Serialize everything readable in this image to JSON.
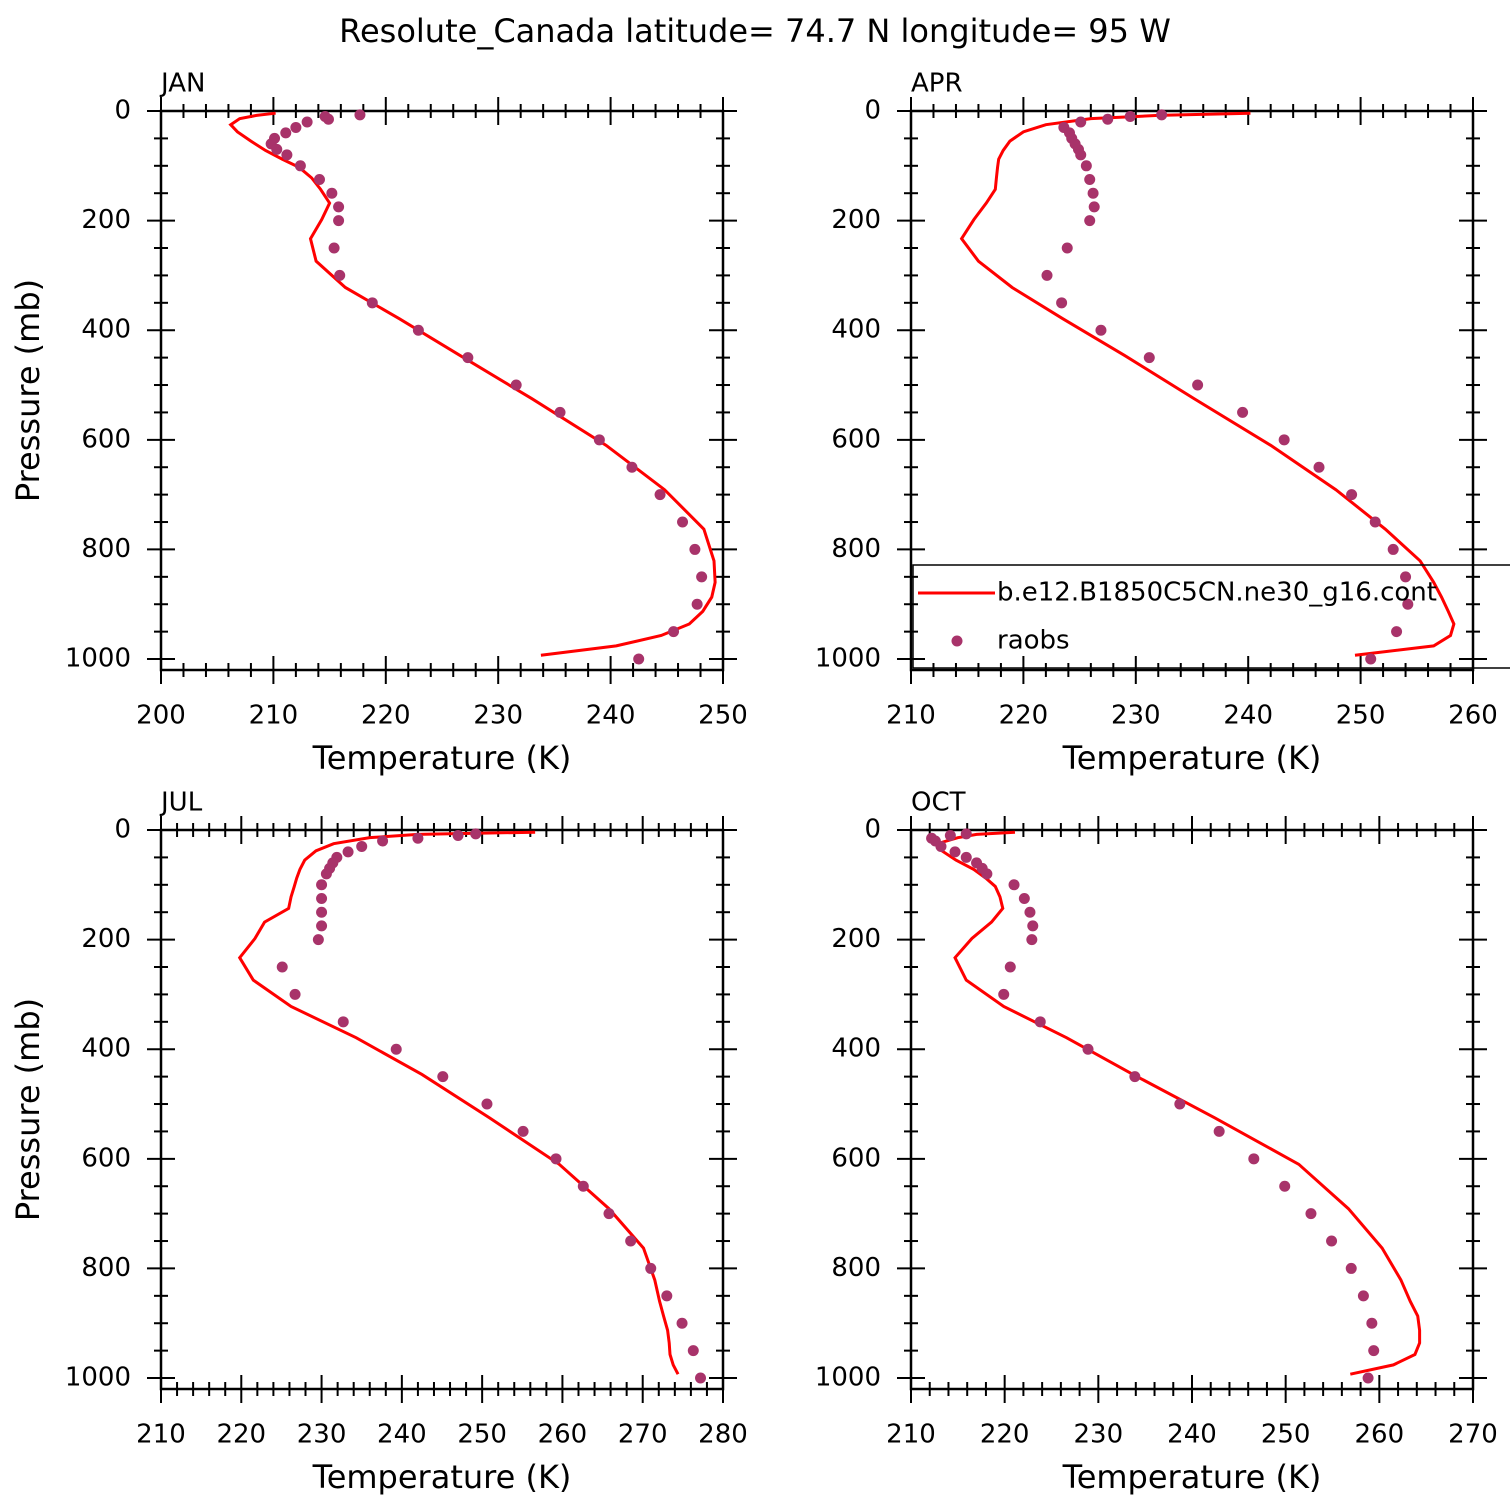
{
  "title": "Resolute_Canada  latitude= 74.7 N longitude= 95 W",
  "chart_data": [
    {
      "type": "profile",
      "title": "JAN",
      "xlabel": "Temperature (K)",
      "ylabel": "Pressure (mb)",
      "xlim": [
        200,
        250
      ],
      "xticks": [
        200,
        210,
        220,
        230,
        240,
        250
      ],
      "ylim": [
        0,
        1020
      ],
      "y_reversed": true,
      "yticks": [
        0,
        200,
        400,
        600,
        800,
        1000
      ],
      "series": [
        {
          "type": "line",
          "color": "#ff0000",
          "x": [
            210.2,
            208.5,
            207.0,
            206.2,
            206.8,
            208.0,
            209.3,
            210.8,
            212.3,
            213.4,
            214.2,
            215.0,
            214.3,
            213.3,
            213.8,
            216.4,
            221.2,
            226.6,
            233.0,
            239.6,
            244.8,
            248.3,
            249.2,
            249.3,
            249.0,
            248.2,
            247.0,
            244.5,
            240.5,
            233.8
          ],
          "y": [
            4,
            8,
            14,
            25,
            38,
            55,
            72,
            88,
            103,
            122,
            143,
            168,
            198,
            233,
            274,
            322,
            379,
            446,
            525,
            610,
            691,
            763,
            821,
            860,
            887,
            913,
            936,
            957,
            976,
            993
          ]
        },
        {
          "type": "scatter",
          "color": "#a8336a",
          "x": [
            217.7,
            214.6,
            214.9,
            213.0,
            212.0,
            211.1,
            210.1,
            209.8,
            210.3,
            211.2,
            212.4,
            214.1,
            215.2,
            215.8,
            215.8,
            215.4,
            215.9,
            218.8,
            222.9,
            227.3,
            231.6,
            235.5,
            239.0,
            241.9,
            244.4,
            246.4,
            247.5,
            248.1,
            247.7,
            245.6,
            242.5
          ],
          "y": [
            7,
            10,
            15,
            20,
            30,
            40,
            50,
            60,
            70,
            80,
            100,
            125,
            150,
            175,
            200,
            250,
            300,
            350,
            400,
            450,
            500,
            550,
            600,
            650,
            700,
            750,
            800,
            850,
            900,
            950,
            1000
          ]
        }
      ]
    },
    {
      "type": "profile",
      "title": "APR",
      "xlabel": "Temperature (K)",
      "xlim": [
        210,
        260
      ],
      "xticks": [
        210,
        220,
        230,
        240,
        250,
        260
      ],
      "ylim": [
        0,
        1020
      ],
      "y_reversed": true,
      "yticks": [
        0,
        200,
        400,
        600,
        800,
        1000
      ],
      "legend": true,
      "series": [
        {
          "name": "b.e12.B1850C5CN.ne30_g16.cont",
          "type": "line",
          "color": "#ff0000",
          "x": [
            240.2,
            232.0,
            226.0,
            222.0,
            220.0,
            218.8,
            218.2,
            217.8,
            217.7,
            217.6,
            217.5,
            216.7,
            215.6,
            214.5,
            216.0,
            219.0,
            223.5,
            229.0,
            235.2,
            242.0,
            247.8,
            252.2,
            255.3,
            256.5,
            257.2,
            257.8,
            258.3,
            258.0,
            256.5,
            249.5
          ],
          "y": [
            4,
            8,
            14,
            25,
            38,
            55,
            72,
            88,
            103,
            122,
            143,
            168,
            198,
            233,
            274,
            322,
            379,
            446,
            525,
            610,
            691,
            763,
            821,
            860,
            887,
            913,
            936,
            957,
            976,
            993
          ]
        },
        {
          "name": "raobs",
          "type": "scatter",
          "color": "#a8336a",
          "x": [
            232.3,
            229.5,
            227.5,
            225.1,
            223.6,
            224.1,
            224.3,
            224.6,
            224.9,
            225.1,
            225.6,
            225.9,
            226.2,
            226.3,
            225.9,
            223.9,
            222.1,
            223.4,
            226.9,
            231.2,
            235.5,
            239.5,
            243.2,
            246.3,
            249.2,
            251.3,
            252.9,
            254.0,
            254.2,
            253.2,
            250.9
          ],
          "y": [
            7,
            10,
            15,
            20,
            30,
            40,
            50,
            60,
            70,
            80,
            100,
            125,
            150,
            175,
            200,
            250,
            300,
            350,
            400,
            450,
            500,
            550,
            600,
            650,
            700,
            750,
            800,
            850,
            900,
            950,
            1000
          ]
        }
      ]
    },
    {
      "type": "profile",
      "title": "JUL",
      "xlabel": "Temperature (K)",
      "ylabel": "Pressure (mb)",
      "xlim": [
        210,
        280
      ],
      "xticks": [
        210,
        220,
        230,
        240,
        250,
        260,
        270,
        280
      ],
      "ylim": [
        0,
        1020
      ],
      "y_reversed": true,
      "yticks": [
        0,
        200,
        400,
        600,
        800,
        1000
      ],
      "series": [
        {
          "type": "line",
          "color": "#ff0000",
          "x": [
            256.6,
            242.0,
            236.0,
            231.5,
            229.3,
            227.9,
            227.3,
            226.9,
            226.6,
            226.2,
            225.9,
            222.9,
            221.7,
            219.8,
            221.5,
            226.2,
            234.3,
            242.5,
            250.9,
            259.6,
            265.8,
            270.1,
            271.5,
            272.1,
            272.6,
            273.1,
            273.3,
            273.4,
            273.8,
            274.4
          ],
          "y": [
            4,
            8,
            14,
            25,
            38,
            55,
            72,
            88,
            103,
            122,
            143,
            168,
            198,
            233,
            274,
            322,
            379,
            446,
            525,
            610,
            691,
            763,
            821,
            860,
            887,
            913,
            936,
            957,
            976,
            993
          ]
        },
        {
          "type": "scatter",
          "color": "#a8336a",
          "x": [
            249.2,
            247.0,
            242.0,
            237.6,
            235.0,
            233.3,
            231.9,
            231.4,
            231.0,
            230.6,
            230.0,
            230.0,
            230.0,
            230.0,
            229.6,
            225.1,
            226.7,
            232.7,
            239.3,
            245.1,
            250.6,
            255.1,
            259.2,
            262.6,
            265.8,
            268.5,
            271.0,
            273.0,
            274.9,
            276.3,
            277.2
          ],
          "y": [
            7,
            10,
            15,
            20,
            30,
            40,
            50,
            60,
            70,
            80,
            100,
            125,
            150,
            175,
            200,
            250,
            300,
            350,
            400,
            450,
            500,
            550,
            600,
            650,
            700,
            750,
            800,
            850,
            900,
            950,
            1000
          ]
        }
      ]
    },
    {
      "type": "profile",
      "title": "OCT",
      "xlabel": "Temperature (K)",
      "xlim": [
        210,
        270
      ],
      "xticks": [
        210,
        220,
        230,
        240,
        250,
        260,
        270
      ],
      "ylim": [
        0,
        1020
      ],
      "y_reversed": true,
      "yticks": [
        0,
        200,
        400,
        600,
        800,
        1000
      ],
      "series": [
        {
          "type": "line",
          "color": "#ff0000",
          "x": [
            221.1,
            217.0,
            215.0,
            212.8,
            213.3,
            214.8,
            216.7,
            218.0,
            219.0,
            219.5,
            219.8,
            218.6,
            216.5,
            214.7,
            215.9,
            219.9,
            226.6,
            233.7,
            242.4,
            251.4,
            256.7,
            260.3,
            262.3,
            263.3,
            264.1,
            264.3,
            264.3,
            263.8,
            261.5,
            256.9
          ],
          "y": [
            4,
            8,
            14,
            25,
            38,
            55,
            72,
            88,
            103,
            122,
            143,
            168,
            198,
            233,
            274,
            322,
            379,
            446,
            525,
            610,
            691,
            763,
            821,
            860,
            887,
            913,
            936,
            957,
            976,
            993
          ]
        },
        {
          "type": "scatter",
          "color": "#a8336a",
          "x": [
            215.9,
            214.2,
            212.2,
            212.6,
            213.2,
            214.7,
            215.9,
            217.0,
            217.6,
            218.1,
            221.0,
            222.1,
            222.7,
            223.0,
            222.9,
            220.6,
            219.9,
            223.8,
            228.9,
            233.9,
            238.7,
            242.9,
            246.6,
            249.9,
            252.7,
            254.9,
            257.0,
            258.3,
            259.2,
            259.4,
            258.8
          ],
          "y": [
            7,
            10,
            15,
            20,
            30,
            40,
            50,
            60,
            70,
            80,
            100,
            125,
            150,
            175,
            200,
            250,
            300,
            350,
            400,
            450,
            500,
            550,
            600,
            650,
            700,
            750,
            800,
            850,
            900,
            950,
            1000
          ]
        }
      ]
    }
  ]
}
